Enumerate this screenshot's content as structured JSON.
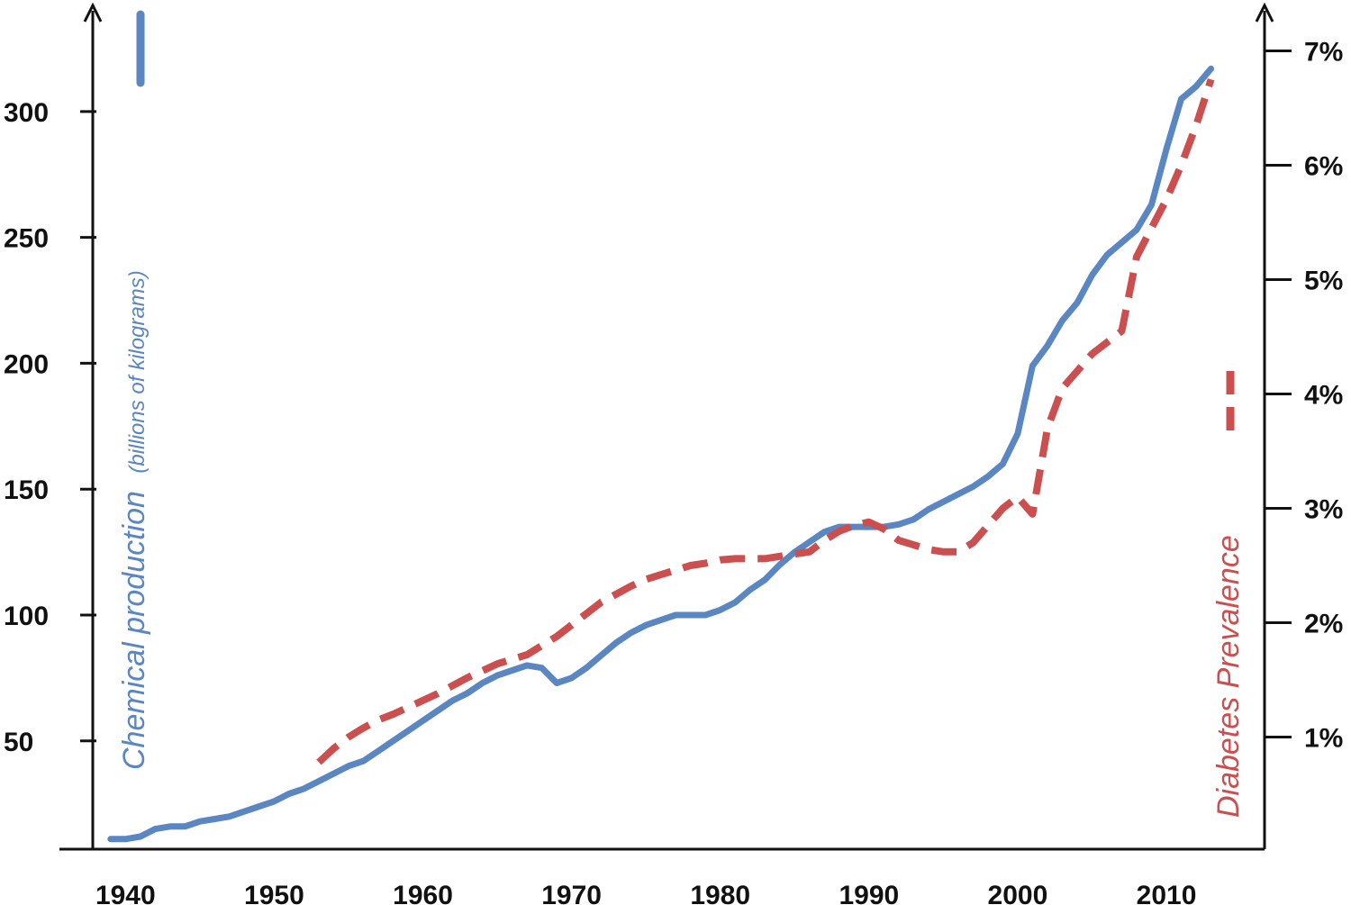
{
  "chart_data": {
    "type": "line",
    "x_ticks": [
      1940,
      1950,
      1960,
      1970,
      1980,
      1990,
      2000,
      2010
    ],
    "left_ticks": [
      50,
      100,
      150,
      200,
      250,
      300
    ],
    "right_ticks": [
      "1%",
      "2%",
      "3%",
      "4%",
      "5%",
      "6%",
      "7%"
    ],
    "left_axis": {
      "label": "Chemical production",
      "sublabel": "(billions of kilograms)",
      "range": [
        7,
        340
      ],
      "color": "#5a86c2"
    },
    "right_axis": {
      "label": "Diabetes Prevalence",
      "range": [
        0.02,
        7.35
      ],
      "color": "#cc4f4f"
    },
    "xlim": [
      1937.8,
      2016.6
    ],
    "legend": "inline-with-axis-titles",
    "grid": false,
    "series": [
      {
        "name": "Chemical production",
        "axis": "left",
        "style": "solid",
        "color": "#5a86c2",
        "x": [
          1939,
          1940,
          1941,
          1942,
          1943,
          1944,
          1945,
          1946,
          1947,
          1948,
          1949,
          1950,
          1951,
          1952,
          1953,
          1954,
          1955,
          1956,
          1957,
          1958,
          1959,
          1960,
          1961,
          1962,
          1963,
          1964,
          1965,
          1966,
          1967,
          1968,
          1969,
          1970,
          1971,
          1972,
          1973,
          1974,
          1975,
          1976,
          1977,
          1978,
          1979,
          1980,
          1981,
          1982,
          1983,
          1984,
          1985,
          1986,
          1987,
          1988,
          1989,
          1990,
          1991,
          1992,
          1993,
          1994,
          1995,
          1996,
          1997,
          1998,
          1999,
          2000,
          2001,
          2002,
          2003,
          2004,
          2005,
          2006,
          2007,
          2008,
          2009,
          2010,
          2011,
          2012,
          2013
        ],
        "y": [
          11,
          11,
          12,
          15,
          16,
          16,
          18,
          19,
          20,
          22,
          24,
          26,
          29,
          31,
          34,
          37,
          40,
          42,
          46,
          50,
          54,
          58,
          62,
          66,
          69,
          73,
          76,
          78,
          80,
          79,
          73,
          75,
          79,
          84,
          89,
          93,
          96,
          98,
          100,
          100,
          100,
          102,
          105,
          110,
          114,
          120,
          125,
          129,
          133,
          135,
          135,
          135,
          135,
          136,
          138,
          142,
          145,
          148,
          151,
          155,
          160,
          172,
          199,
          207,
          217,
          224,
          235,
          243,
          248,
          253,
          263,
          285,
          305,
          310,
          317
        ]
      },
      {
        "name": "Diabetes Prevalence",
        "axis": "right",
        "style": "dashed",
        "color": "#cc4f4f",
        "x": [
          1953,
          1954,
          1955,
          1956,
          1957,
          1958,
          1959,
          1960,
          1961,
          1962,
          1963,
          1964,
          1965,
          1966,
          1967,
          1968,
          1969,
          1970,
          1971,
          1972,
          1973,
          1974,
          1975,
          1976,
          1977,
          1978,
          1979,
          1980,
          1981,
          1982,
          1983,
          1984,
          1985,
          1986,
          1987,
          1988,
          1989,
          1990,
          1991,
          1992,
          1993,
          1994,
          1995,
          1996,
          1997,
          1998,
          1999,
          2000,
          2001,
          2002,
          2003,
          2004,
          2005,
          2006,
          2007,
          2008,
          2009,
          2010,
          2011,
          2012,
          2013
        ],
        "y": [
          0.78,
          0.9,
          1.0,
          1.08,
          1.15,
          1.2,
          1.26,
          1.32,
          1.38,
          1.45,
          1.52,
          1.58,
          1.64,
          1.68,
          1.72,
          1.8,
          1.88,
          1.98,
          2.08,
          2.18,
          2.25,
          2.32,
          2.38,
          2.42,
          2.46,
          2.5,
          2.52,
          2.55,
          2.56,
          2.56,
          2.56,
          2.58,
          2.6,
          2.62,
          2.72,
          2.8,
          2.85,
          2.88,
          2.82,
          2.72,
          2.68,
          2.64,
          2.62,
          2.62,
          2.7,
          2.85,
          3.0,
          3.1,
          2.95,
          3.7,
          4.05,
          4.2,
          4.35,
          4.45,
          4.55,
          5.2,
          5.45,
          5.7,
          6.0,
          6.35,
          6.75
        ]
      }
    ]
  }
}
